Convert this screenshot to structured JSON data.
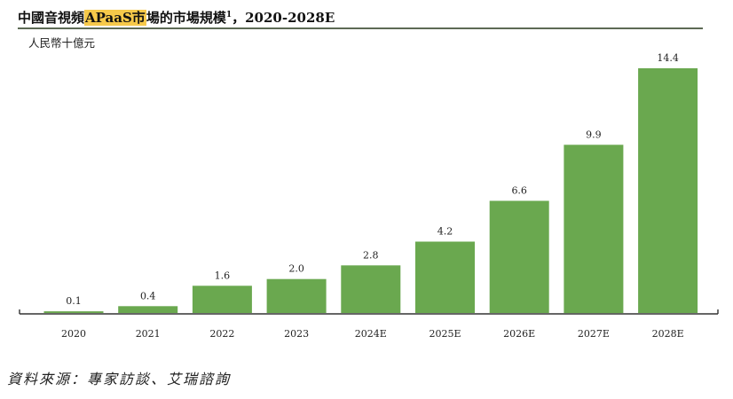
{
  "header": {
    "title_prefix": "中國音視頻",
    "title_highlight": "APaaS市",
    "title_suffix": "場的市場規模",
    "title_sup": "1",
    "title_tail": "，2020-2028E",
    "unit": "人民幣十億元"
  },
  "source": "資料來源：專家訪談、艾瑞諮詢",
  "colors": {
    "bar": "#6aa84f",
    "axis": "#333333",
    "highlight": "#f6c94a"
  },
  "chart_data": {
    "type": "bar",
    "categories": [
      "2020",
      "2021",
      "2022",
      "2023",
      "2024E",
      "2025E",
      "2026E",
      "2027E",
      "2028E"
    ],
    "values": [
      0.1,
      0.4,
      1.6,
      2.0,
      2.8,
      4.2,
      6.6,
      9.9,
      14.4
    ],
    "value_labels": [
      "0.1",
      "0.4",
      "1.6",
      "2.0",
      "2.8",
      "4.2",
      "6.6",
      "9.9",
      "14.4"
    ],
    "ylabel": "人民幣十億元",
    "ylim": [
      0,
      14.4
    ],
    "grid": false,
    "legend": "none"
  }
}
